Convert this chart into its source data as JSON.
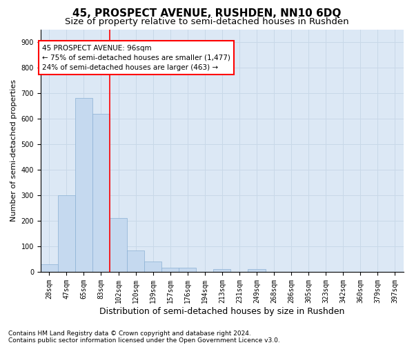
{
  "title": "45, PROSPECT AVENUE, RUSHDEN, NN10 6DQ",
  "subtitle": "Size of property relative to semi-detached houses in Rushden",
  "xlabel": "Distribution of semi-detached houses by size in Rushden",
  "ylabel": "Number of semi-detached properties",
  "categories": [
    "28sqm",
    "47sqm",
    "65sqm",
    "83sqm",
    "102sqm",
    "120sqm",
    "139sqm",
    "157sqm",
    "176sqm",
    "194sqm",
    "213sqm",
    "231sqm",
    "249sqm",
    "268sqm",
    "286sqm",
    "305sqm",
    "323sqm",
    "342sqm",
    "360sqm",
    "379sqm",
    "397sqm"
  ],
  "values": [
    30,
    300,
    680,
    620,
    210,
    85,
    40,
    15,
    15,
    0,
    10,
    0,
    10,
    0,
    0,
    0,
    0,
    0,
    0,
    0,
    0
  ],
  "bar_color": "#c5d9ef",
  "bar_edge_color": "#8ab0d4",
  "annotation_line1": "45 PROSPECT AVENUE: 96sqm",
  "annotation_line2": "← 75% of semi-detached houses are smaller (1,477)",
  "annotation_line3": "24% of semi-detached houses are larger (463) →",
  "ylim": [
    0,
    950
  ],
  "yticks": [
    0,
    100,
    200,
    300,
    400,
    500,
    600,
    700,
    800,
    900
  ],
  "footnote1": "Contains HM Land Registry data © Crown copyright and database right 2024.",
  "footnote2": "Contains public sector information licensed under the Open Government Licence v3.0.",
  "grid_color": "#c8d8e8",
  "bg_color": "#dce8f5",
  "title_fontsize": 11,
  "subtitle_fontsize": 9.5,
  "xlabel_fontsize": 9,
  "ylabel_fontsize": 8,
  "tick_fontsize": 7,
  "footnote_fontsize": 6.5,
  "red_line_x": 4.5
}
